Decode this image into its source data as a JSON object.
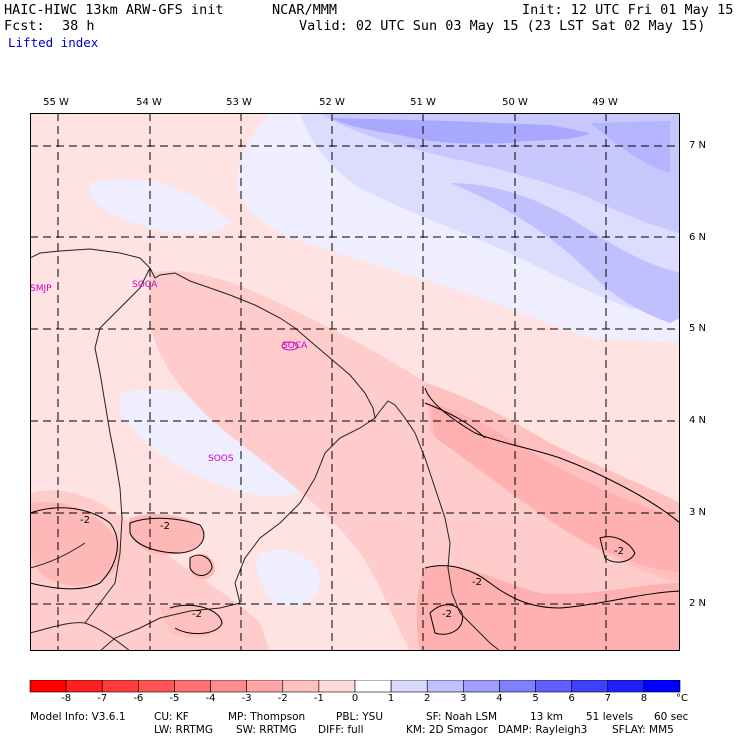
{
  "header": {
    "model": "HAIC-HIWC 13km ARW-GFS init",
    "org": "NCAR/MMM",
    "init": "Init: 12 UTC Fri 01 May 15",
    "fcst_label": "Fcst:",
    "fcst_value": "38 h",
    "valid": "Valid: 02 UTC Sun 03 May 15 (23 LST Sat 02 May 15)",
    "field": "Lifted index"
  },
  "lon_labels": [
    "55 W",
    "54 W",
    "53 W",
    "52 W",
    "51 W",
    "50 W",
    "49 W"
  ],
  "lat_labels": [
    "7 N",
    "6 N",
    "5 N",
    "4 N",
    "3 N",
    "2 N"
  ],
  "stations": [
    "SMJP",
    "SOCA",
    "SOCA",
    "SOOS"
  ],
  "contour_labels": [
    "-2",
    "-2",
    "-2",
    "-2",
    "-2",
    "-2"
  ],
  "colorbar": {
    "labels": [
      "-8",
      "-7",
      "-6",
      "-5",
      "-4",
      "-3",
      "-2",
      "-1",
      "0",
      "1",
      "2",
      "3",
      "4",
      "5",
      "6",
      "7",
      "8"
    ],
    "unit": "°C",
    "colors": [
      "#ff0000",
      "#ff2020",
      "#ff3b3b",
      "#ff5555",
      "#ff7070",
      "#ff8c8c",
      "#ffa5a5",
      "#ffc0c0",
      "#ffdada",
      "#ffffff",
      "#dadaff",
      "#c0c0ff",
      "#a0a0ff",
      "#8080ff",
      "#6060ff",
      "#4040ff",
      "#2020ff",
      "#0000ff"
    ]
  },
  "footer": {
    "line1": [
      "Model Info: V3.6.1",
      "CU: KF",
      "MP: Thompson",
      "PBL: YSU",
      "SF: Noah LSM",
      "13 km",
      "51 levels",
      "60 sec"
    ],
    "line2": [
      "LW: RRTMG",
      "SW: RRTMG",
      "DIFF: full",
      "KM: 2D Smagor",
      "DAMP: Rayleigh3",
      "SFLAY: MM5"
    ]
  },
  "colors": {
    "pink_light": "#ffe2e2",
    "pink": "#ffcccc",
    "pink_mid": "#ffb0b0",
    "lavender": "#eeeeff",
    "blue_light": "#dcdcff",
    "blue": "#a8a8ff",
    "station": "#cc00cc"
  }
}
